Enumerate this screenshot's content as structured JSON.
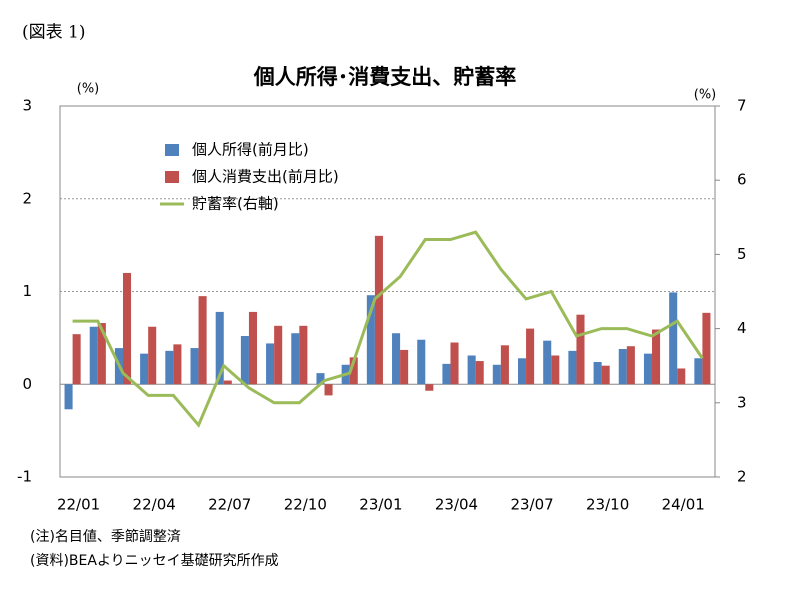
{
  "chart_data": {
    "type": "bar_line",
    "figure_label": "(図表 1)",
    "title": "個人所得･消費支出、貯蓄率",
    "y_unit": "(%)",
    "y2_unit": "(%)",
    "categories": [
      "22/01",
      null,
      null,
      "22/04",
      null,
      null,
      "22/07",
      null,
      null,
      "22/10",
      null,
      null,
      "23/01",
      null,
      null,
      "23/04",
      null,
      null,
      "23/07",
      null,
      null,
      "23/10",
      null,
      null,
      "24/01",
      null
    ],
    "series": [
      {
        "name": "個人所得(前月比)",
        "type": "bar",
        "color": "#4f81bd",
        "values": [
          -0.27,
          0.62,
          0.39,
          0.33,
          0.36,
          0.39,
          0.78,
          0.52,
          0.44,
          0.55,
          0.12,
          0.21,
          0.96,
          0.55,
          0.48,
          0.22,
          0.31,
          0.21,
          0.28,
          0.47,
          0.36,
          0.24,
          0.38,
          0.33,
          0.99,
          0.28
        ]
      },
      {
        "name": "個人消費支出(前月比)",
        "type": "bar",
        "color": "#c0504d",
        "values": [
          0.54,
          0.66,
          1.2,
          0.62,
          0.43,
          0.95,
          0.04,
          0.78,
          0.63,
          0.63,
          -0.12,
          0.29,
          1.6,
          0.37,
          -0.07,
          0.45,
          0.25,
          0.42,
          0.6,
          0.31,
          0.75,
          0.2,
          0.41,
          0.59,
          0.17,
          0.77
        ]
      },
      {
        "name": "貯蓄率(右軸)",
        "type": "line",
        "axis": "y2",
        "color": "#9bbb59",
        "values": [
          4.1,
          4.1,
          3.4,
          3.1,
          3.1,
          2.7,
          3.5,
          3.2,
          3.0,
          3.0,
          3.3,
          3.4,
          4.4,
          4.7,
          5.2,
          5.2,
          5.3,
          4.8,
          4.4,
          4.5,
          3.9,
          4.0,
          4.0,
          3.9,
          4.1,
          3.6
        ]
      }
    ],
    "ylim": [
      -1,
      3
    ],
    "yticks": [
      -1,
      0,
      1,
      2,
      3
    ],
    "y2lim": [
      2,
      7
    ],
    "y2ticks": [
      2,
      3,
      4,
      5,
      6,
      7
    ],
    "grid": true,
    "notes": [
      "(注)名目値、季節調整済",
      "(資料)BEAよりニッセイ基礎研究所作成"
    ]
  }
}
